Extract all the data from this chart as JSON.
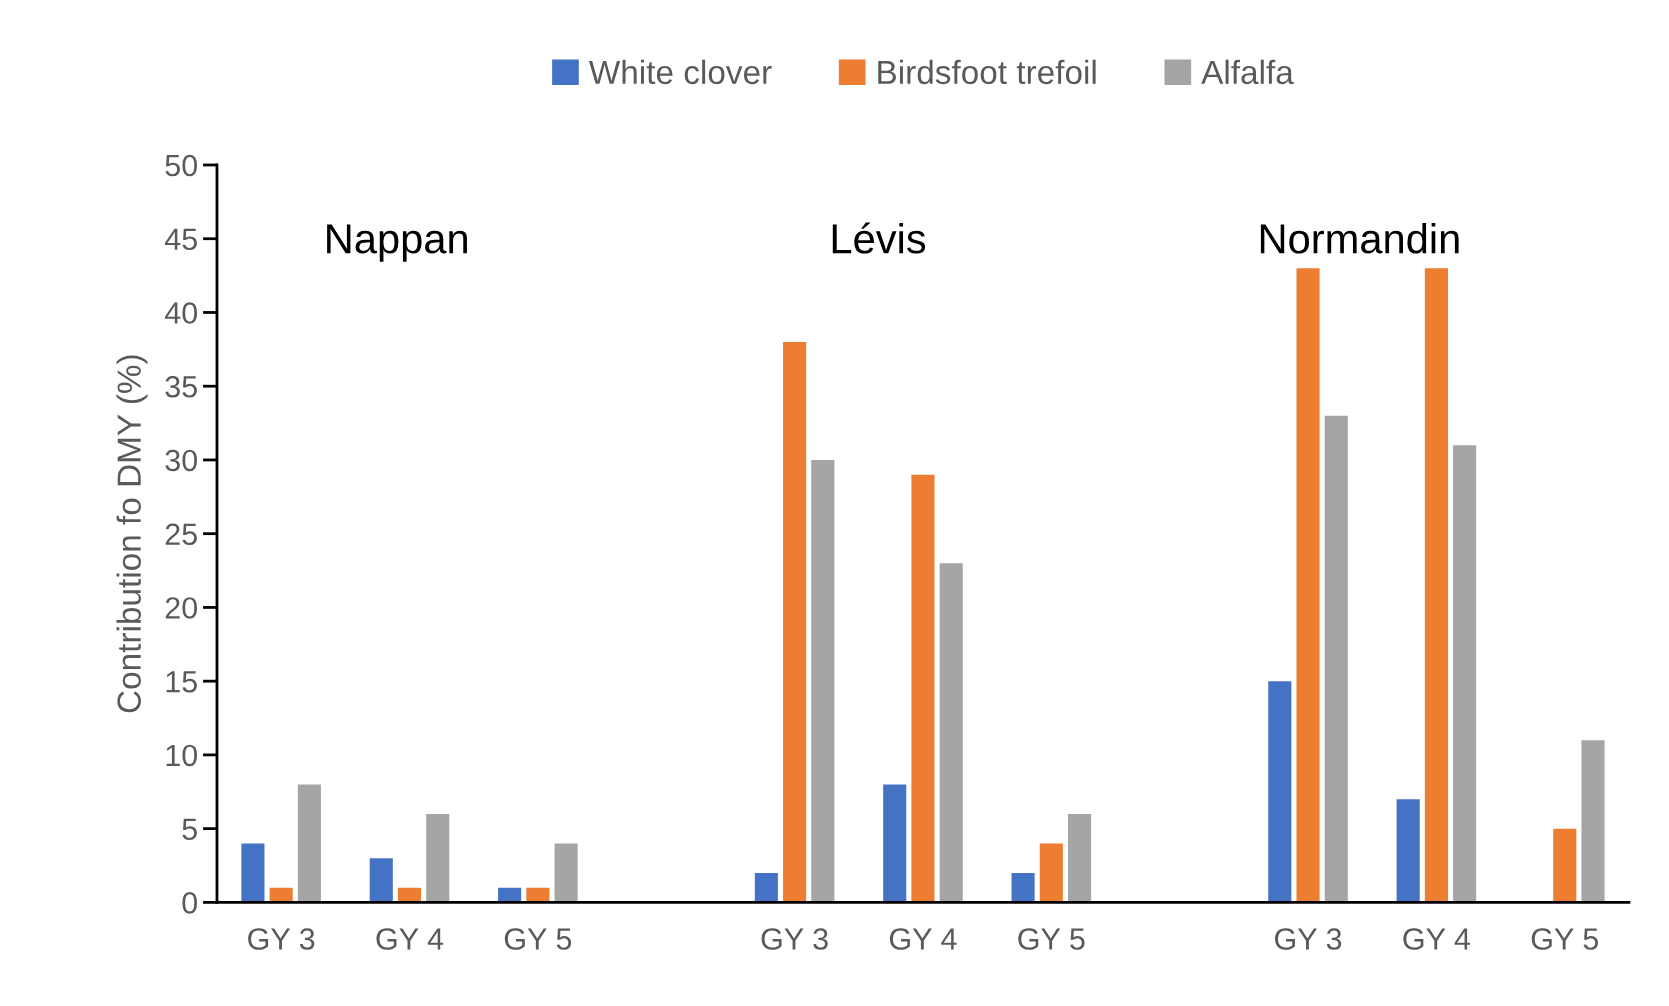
{
  "chart_data": {
    "type": "bar",
    "categories": [
      "GY 3",
      "GY 4",
      "GY 5",
      null,
      "GY 3",
      "GY 4",
      "GY 5",
      null,
      "GY 3",
      "GY 4",
      "GY 5"
    ],
    "series": [
      {
        "name": "White clover",
        "color": "#4472c4",
        "values": [
          4,
          3,
          1,
          null,
          2,
          8,
          2,
          null,
          15,
          7,
          null
        ]
      },
      {
        "name": "Birdsfoot trefoil",
        "color": "#ed7d31",
        "values": [
          1,
          1,
          1,
          null,
          38,
          29,
          4,
          null,
          43,
          43,
          5
        ]
      },
      {
        "name": "Alfalfa",
        "color": "#a5a5a5",
        "values": [
          8,
          6,
          4,
          null,
          30,
          23,
          6,
          null,
          33,
          31,
          11
        ]
      }
    ],
    "ylabel": "Contribution fo DMY (%)",
    "ylim": [
      0,
      50
    ],
    "yticks": [
      0,
      5,
      10,
      15,
      20,
      25,
      30,
      35,
      40,
      45,
      50
    ],
    "annotations": [
      "Nappan",
      "Lévis",
      "Normandin"
    ],
    "legend": "top",
    "grid": false
  }
}
